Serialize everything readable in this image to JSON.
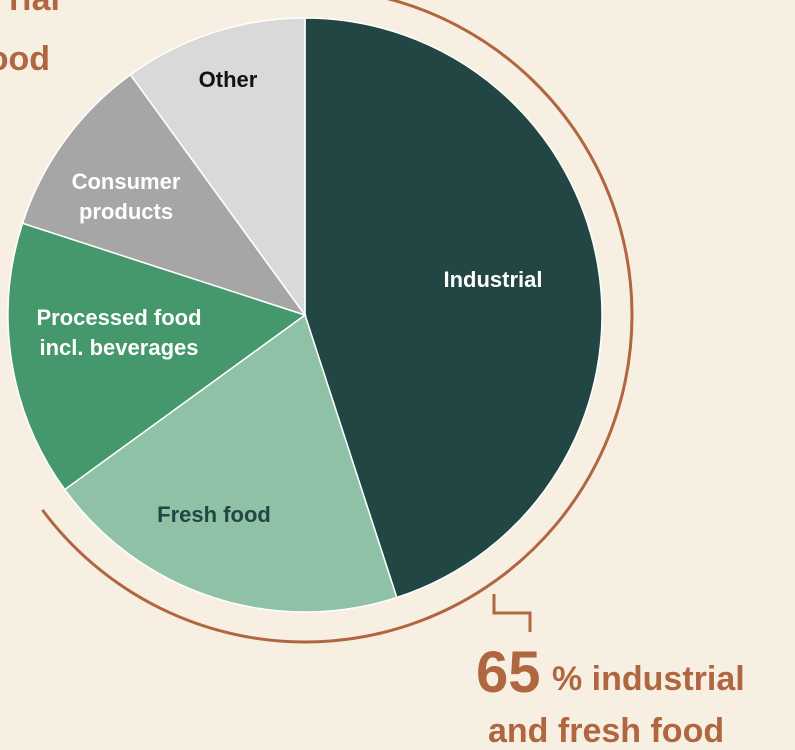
{
  "chart_data": {
    "type": "pie",
    "categories": [
      "Industrial",
      "Fresh food",
      "Processed food incl. beverages",
      "Consumer products",
      "Other"
    ],
    "values": [
      45,
      20,
      15,
      10,
      10
    ],
    "colors": [
      "#214643",
      "#8fc1a7",
      "#45986b",
      "#a6a6a6",
      "#d9d9d9"
    ],
    "label_colors": [
      "#ffffff",
      "#214643",
      "#ffffff",
      "#ffffff",
      "#111111"
    ],
    "annotation": {
      "value": 65,
      "text": "% industrial",
      "text2": "and fresh food"
    },
    "cropped_annotation": [
      "rial",
      "ood"
    ]
  }
}
